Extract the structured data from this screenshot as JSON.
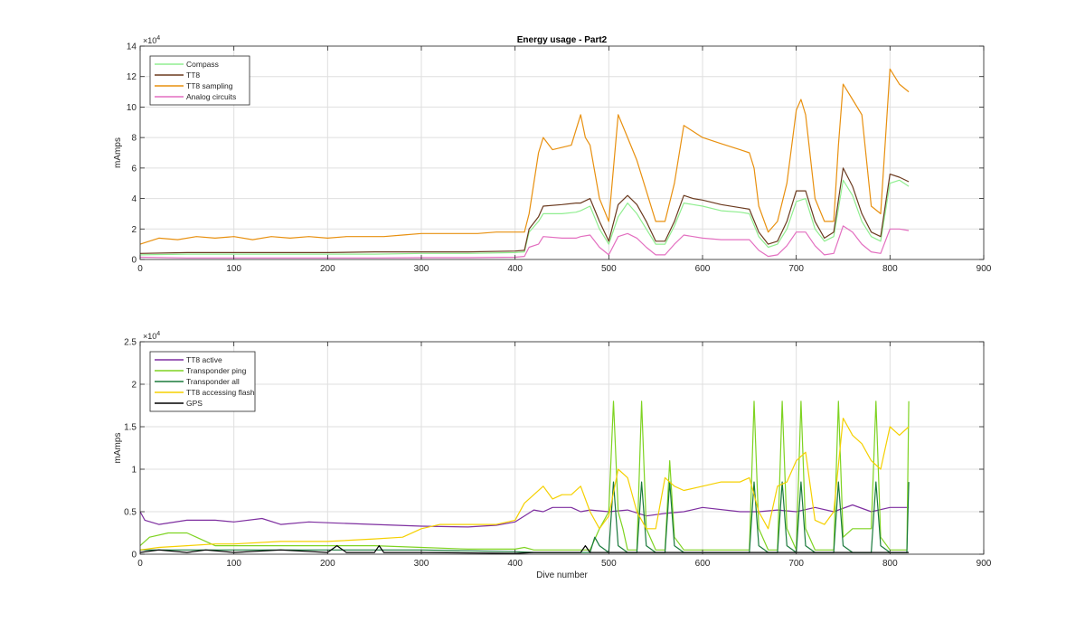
{
  "chart_data": [
    {
      "type": "line",
      "title": "Energy usage - Part2",
      "xlabel": "",
      "ylabel": "mAmps",
      "exponent_label": "10^4",
      "xlim": [
        0,
        900
      ],
      "ylim": [
        0,
        14
      ],
      "y_scale_note": "y values in units of 10^4 mAmps",
      "xticks": [
        "0",
        "100",
        "200",
        "300",
        "400",
        "500",
        "600",
        "700",
        "800",
        "900"
      ],
      "yticks": [
        "0",
        "2",
        "4",
        "6",
        "8",
        "10",
        "12",
        "14"
      ],
      "grid": true,
      "legend_position": "top-left",
      "series": [
        {
          "name": "Compass",
          "color": "#90ee90",
          "x": [
            0,
            50,
            100,
            150,
            200,
            250,
            300,
            350,
            400,
            410,
            415,
            425,
            430,
            450,
            465,
            470,
            480,
            490,
            500,
            510,
            520,
            530,
            540,
            550,
            560,
            570,
            580,
            590,
            600,
            620,
            640,
            650,
            660,
            670,
            680,
            690,
            700,
            710,
            720,
            730,
            740,
            750,
            760,
            770,
            780,
            790,
            800,
            810,
            820
          ],
          "y": [
            0.3,
            0.35,
            0.35,
            0.35,
            0.35,
            0.35,
            0.4,
            0.4,
            0.45,
            0.5,
            1.8,
            2.5,
            3.0,
            3.0,
            3.1,
            3.2,
            3.5,
            2.0,
            1.0,
            2.8,
            3.7,
            3.0,
            2.0,
            1.0,
            1.0,
            2.2,
            3.7,
            3.6,
            3.5,
            3.2,
            3.1,
            3.0,
            1.5,
            0.8,
            1.0,
            2.0,
            3.8,
            4.0,
            2.0,
            1.2,
            1.5,
            5.2,
            4.2,
            2.5,
            1.5,
            1.2,
            5.0,
            5.2,
            4.8
          ]
        },
        {
          "name": "TT8",
          "color": "#6b3a1f",
          "x": [
            0,
            50,
            100,
            150,
            200,
            250,
            300,
            350,
            400,
            410,
            415,
            425,
            430,
            450,
            465,
            470,
            480,
            490,
            500,
            510,
            520,
            530,
            540,
            550,
            560,
            570,
            580,
            590,
            600,
            620,
            640,
            650,
            660,
            670,
            680,
            690,
            700,
            710,
            720,
            730,
            740,
            750,
            760,
            770,
            780,
            790,
            800,
            810,
            820
          ],
          "y": [
            0.4,
            0.45,
            0.45,
            0.45,
            0.45,
            0.5,
            0.5,
            0.5,
            0.55,
            0.6,
            2.0,
            2.8,
            3.5,
            3.6,
            3.7,
            3.7,
            4.0,
            2.5,
            1.2,
            3.6,
            4.2,
            3.6,
            2.5,
            1.2,
            1.2,
            2.5,
            4.2,
            4.0,
            3.9,
            3.6,
            3.4,
            3.3,
            1.8,
            1.0,
            1.2,
            2.5,
            4.5,
            4.5,
            2.5,
            1.4,
            1.8,
            6.0,
            4.8,
            3.0,
            1.8,
            1.5,
            5.6,
            5.4,
            5.1
          ]
        },
        {
          "name": "TT8 sampling",
          "color": "#e8900f",
          "x": [
            0,
            20,
            40,
            60,
            80,
            100,
            120,
            140,
            160,
            180,
            200,
            220,
            240,
            260,
            280,
            300,
            320,
            340,
            360,
            380,
            400,
            410,
            415,
            425,
            430,
            440,
            460,
            470,
            475,
            480,
            490,
            500,
            510,
            520,
            530,
            540,
            550,
            560,
            570,
            580,
            590,
            600,
            620,
            640,
            650,
            655,
            660,
            670,
            680,
            690,
            700,
            705,
            710,
            720,
            730,
            740,
            745,
            750,
            760,
            770,
            780,
            790,
            800,
            810,
            820
          ],
          "y": [
            1.0,
            1.4,
            1.3,
            1.5,
            1.4,
            1.5,
            1.3,
            1.5,
            1.4,
            1.5,
            1.4,
            1.5,
            1.5,
            1.5,
            1.6,
            1.7,
            1.7,
            1.7,
            1.7,
            1.8,
            1.8,
            1.8,
            3.0,
            7.0,
            8.0,
            7.2,
            7.5,
            9.5,
            8.0,
            7.5,
            4.0,
            2.5,
            9.5,
            8.0,
            6.5,
            4.5,
            2.5,
            2.5,
            5.0,
            8.8,
            8.4,
            8.0,
            7.6,
            7.2,
            7.0,
            6.0,
            3.5,
            1.8,
            2.5,
            5.0,
            9.8,
            10.5,
            9.5,
            4.0,
            2.5,
            2.5,
            7.5,
            11.5,
            10.5,
            9.5,
            3.5,
            3.0,
            12.5,
            11.5,
            11.0
          ]
        },
        {
          "name": "Analog circuits",
          "color": "#e36fc0",
          "x": [
            0,
            50,
            100,
            150,
            200,
            250,
            300,
            350,
            400,
            410,
            415,
            425,
            430,
            450,
            465,
            470,
            480,
            490,
            500,
            510,
            520,
            530,
            540,
            550,
            560,
            570,
            580,
            590,
            600,
            620,
            640,
            650,
            660,
            670,
            680,
            690,
            700,
            710,
            720,
            730,
            740,
            750,
            760,
            770,
            780,
            790,
            800,
            810,
            820
          ],
          "y": [
            0.15,
            0.1,
            0.1,
            0.1,
            0.1,
            0.1,
            0.12,
            0.12,
            0.15,
            0.2,
            0.8,
            1.0,
            1.5,
            1.4,
            1.4,
            1.5,
            1.6,
            0.8,
            0.3,
            1.5,
            1.7,
            1.4,
            0.8,
            0.3,
            0.3,
            1.0,
            1.6,
            1.5,
            1.4,
            1.3,
            1.3,
            1.3,
            0.6,
            0.2,
            0.3,
            0.9,
            1.8,
            1.8,
            0.9,
            0.3,
            0.4,
            2.2,
            1.8,
            1.0,
            0.5,
            0.4,
            2.0,
            2.0,
            1.9
          ]
        }
      ]
    },
    {
      "type": "line",
      "title": "",
      "xlabel": "Dive number",
      "ylabel": "mAmps",
      "exponent_label": "10^4",
      "xlim": [
        0,
        900
      ],
      "ylim": [
        0,
        2.5
      ],
      "y_scale_note": "y values in units of 10^4 mAmps",
      "xticks": [
        "0",
        "100",
        "200",
        "300",
        "400",
        "500",
        "600",
        "700",
        "800",
        "900"
      ],
      "yticks": [
        "0",
        "0.5",
        "1",
        "1.5",
        "2",
        "2.5"
      ],
      "grid": true,
      "legend_position": "top-left",
      "series": [
        {
          "name": "TT8 active",
          "color": "#7e2fa0",
          "x": [
            0,
            5,
            20,
            50,
            80,
            100,
            130,
            150,
            180,
            200,
            250,
            300,
            350,
            380,
            400,
            410,
            420,
            430,
            440,
            460,
            470,
            480,
            500,
            520,
            540,
            560,
            580,
            600,
            640,
            660,
            680,
            700,
            720,
            740,
            760,
            780,
            800,
            820
          ],
          "y": [
            0.5,
            0.4,
            0.35,
            0.4,
            0.4,
            0.38,
            0.42,
            0.35,
            0.38,
            0.37,
            0.35,
            0.33,
            0.32,
            0.34,
            0.38,
            0.45,
            0.52,
            0.5,
            0.55,
            0.55,
            0.5,
            0.52,
            0.5,
            0.52,
            0.45,
            0.48,
            0.5,
            0.55,
            0.5,
            0.5,
            0.52,
            0.5,
            0.55,
            0.5,
            0.58,
            0.5,
            0.55,
            0.55
          ]
        },
        {
          "name": "Transponder ping",
          "color": "#7ed321",
          "x": [
            0,
            10,
            30,
            50,
            60,
            80,
            100,
            150,
            200,
            250,
            300,
            350,
            400,
            410,
            420,
            450,
            470,
            480,
            490,
            500,
            505,
            510,
            515,
            520,
            530,
            535,
            540,
            550,
            560,
            565,
            570,
            580,
            650,
            655,
            660,
            670,
            680,
            685,
            690,
            700,
            705,
            710,
            720,
            740,
            745,
            750,
            760,
            780,
            785,
            790,
            800,
            810,
            818,
            820
          ],
          "y": [
            0.1,
            0.2,
            0.25,
            0.25,
            0.2,
            0.1,
            0.1,
            0.1,
            0.1,
            0.1,
            0.08,
            0.06,
            0.06,
            0.08,
            0.05,
            0.05,
            0.05,
            0.05,
            0.3,
            0.5,
            1.8,
            0.5,
            0.3,
            0.05,
            0.05,
            1.8,
            0.3,
            0.05,
            0.05,
            1.1,
            0.2,
            0.05,
            0.05,
            1.8,
            0.3,
            0.05,
            0.05,
            1.8,
            0.3,
            0.05,
            1.8,
            0.3,
            0.05,
            0.05,
            1.8,
            0.2,
            0.3,
            0.3,
            1.8,
            0.2,
            0.05,
            0.05,
            0.05,
            1.8
          ]
        },
        {
          "name": "Transponder all",
          "color": "#1a7a3c",
          "x": [
            0,
            100,
            200,
            300,
            400,
            420,
            480,
            485,
            490,
            500,
            505,
            510,
            520,
            530,
            535,
            540,
            550,
            560,
            565,
            570,
            580,
            650,
            655,
            660,
            670,
            680,
            685,
            690,
            700,
            705,
            710,
            720,
            740,
            745,
            750,
            760,
            780,
            785,
            790,
            800,
            818,
            820
          ],
          "y": [
            0.05,
            0.05,
            0.05,
            0.05,
            0.03,
            0.02,
            0.02,
            0.2,
            0.1,
            0.02,
            0.85,
            0.1,
            0.02,
            0.02,
            0.85,
            0.1,
            0.02,
            0.02,
            0.85,
            0.1,
            0.02,
            0.02,
            0.85,
            0.1,
            0.02,
            0.02,
            0.85,
            0.1,
            0.02,
            0.85,
            0.1,
            0.02,
            0.02,
            0.85,
            0.1,
            0.02,
            0.02,
            0.85,
            0.1,
            0.02,
            0.02,
            0.85
          ]
        },
        {
          "name": "TT8 accessing flash",
          "color": "#f5d000",
          "x": [
            0,
            20,
            50,
            80,
            100,
            150,
            200,
            250,
            280,
            300,
            320,
            350,
            380,
            400,
            410,
            420,
            430,
            440,
            450,
            460,
            470,
            480,
            490,
            500,
            510,
            520,
            530,
            540,
            550,
            560,
            570,
            580,
            600,
            620,
            640,
            650,
            660,
            670,
            680,
            690,
            700,
            710,
            720,
            730,
            740,
            750,
            760,
            770,
            780,
            790,
            800,
            810,
            820
          ],
          "y": [
            0.05,
            0.08,
            0.1,
            0.12,
            0.12,
            0.15,
            0.15,
            0.18,
            0.2,
            0.3,
            0.35,
            0.35,
            0.35,
            0.4,
            0.6,
            0.7,
            0.8,
            0.65,
            0.7,
            0.7,
            0.8,
            0.5,
            0.3,
            0.45,
            1.0,
            0.9,
            0.5,
            0.3,
            0.3,
            0.9,
            0.8,
            0.75,
            0.8,
            0.85,
            0.85,
            0.9,
            0.5,
            0.3,
            0.8,
            0.85,
            1.1,
            1.2,
            0.4,
            0.35,
            0.5,
            1.6,
            1.4,
            1.3,
            1.1,
            1.0,
            1.5,
            1.4,
            1.5
          ]
        },
        {
          "name": "GPS",
          "color": "#000000",
          "x": [
            0,
            20,
            50,
            70,
            100,
            150,
            200,
            210,
            220,
            250,
            255,
            260,
            300,
            400,
            420,
            450,
            470,
            475,
            480,
            500,
            550,
            600,
            650,
            700,
            750,
            800,
            820
          ],
          "y": [
            0.02,
            0.05,
            0.02,
            0.05,
            0.02,
            0.05,
            0.02,
            0.1,
            0.02,
            0.02,
            0.1,
            0.02,
            0.02,
            0.01,
            0.02,
            0.02,
            0.02,
            0.1,
            0.02,
            0.02,
            0.02,
            0.02,
            0.02,
            0.02,
            0.02,
            0.02,
            0.02
          ]
        }
      ]
    }
  ]
}
